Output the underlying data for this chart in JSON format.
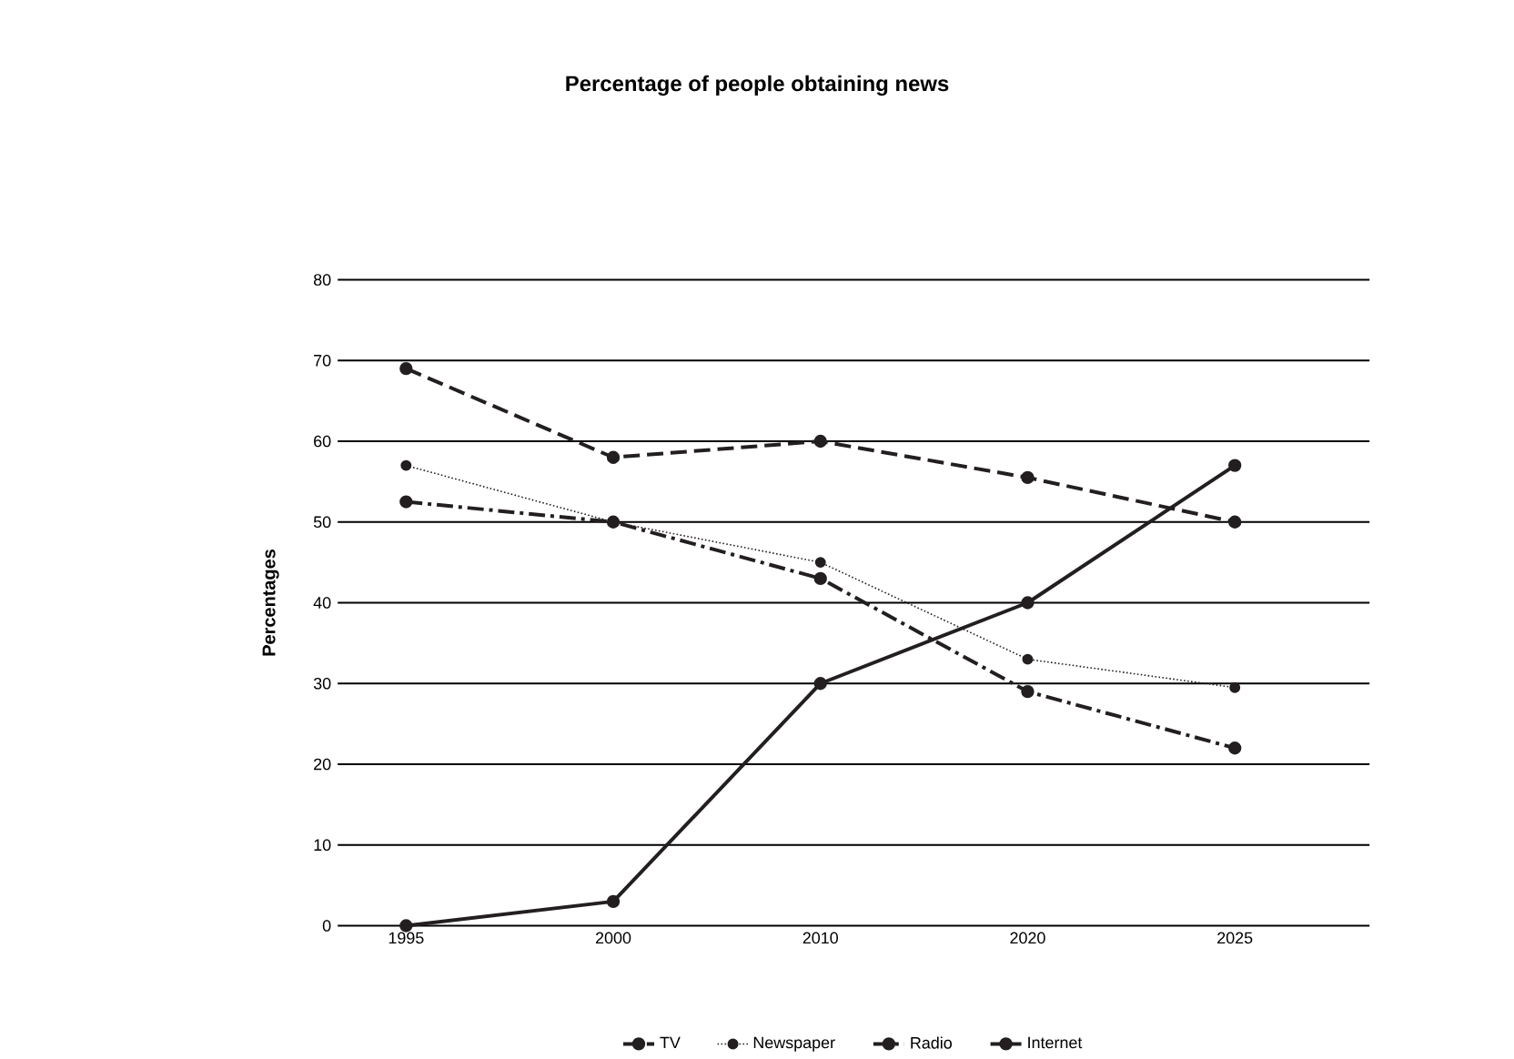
{
  "chart_data": {
    "type": "line",
    "title": "Percentage of people obtaining news",
    "ylabel": "Percentages",
    "categories": [
      "1995",
      "2000",
      "2010",
      "2020",
      "2025"
    ],
    "series": [
      {
        "name": "TV",
        "color": "#231f20",
        "line_style": "dashed",
        "values": [
          69,
          58,
          60,
          55.5,
          50
        ]
      },
      {
        "name": "Newspaper",
        "color": "#231f20",
        "line_style": "dotted",
        "values": [
          57,
          50,
          45,
          33,
          29.5
        ]
      },
      {
        "name": "Radio",
        "color": "#231f20",
        "line_style": "dashdot",
        "values": [
          52.5,
          50,
          43,
          29,
          22
        ]
      },
      {
        "name": "Internet",
        "color": "#231f20",
        "line_style": "solid",
        "values": [
          0,
          3,
          30,
          40,
          57
        ]
      }
    ],
    "ylim": [
      0,
      80
    ],
    "yticks": [
      0,
      10,
      20,
      30,
      40,
      50,
      60,
      70,
      80
    ],
    "grid": "y",
    "legend": "bottom",
    "marker": "circle"
  }
}
